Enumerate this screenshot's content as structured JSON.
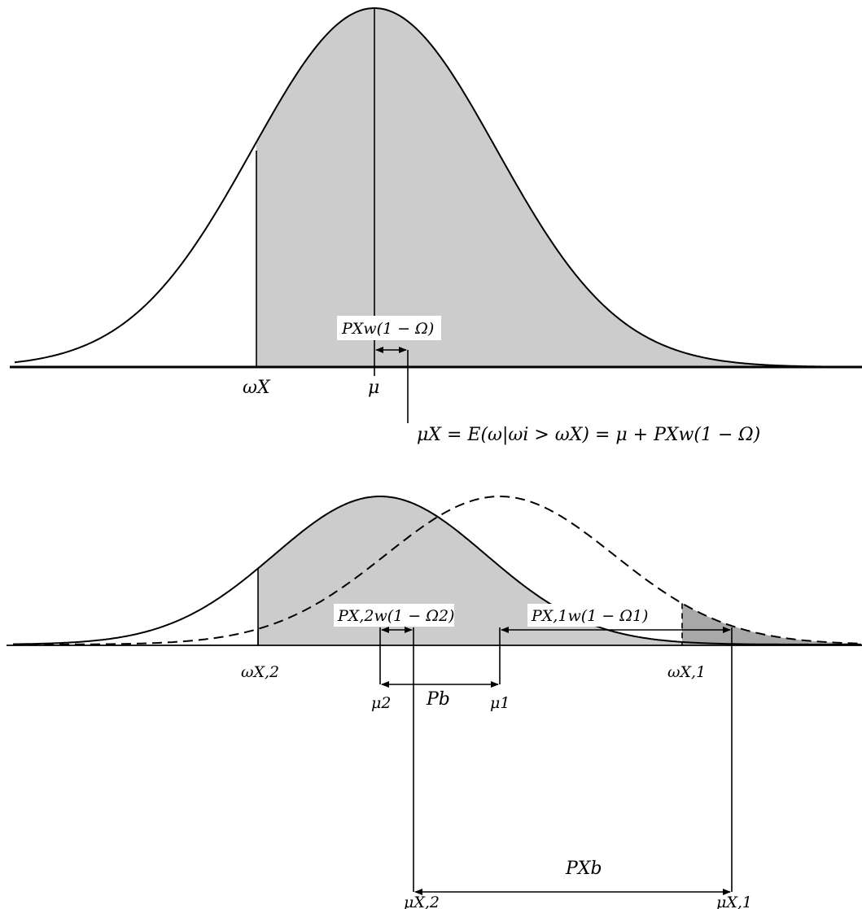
{
  "top_panel": {
    "labels": {
      "omega_X": "ωX",
      "mu": "μ",
      "offset": "PXw(1 − Ω)",
      "equation": "μX = E(ω|ωi > ωX) = μ + PXw(1 − Ω)"
    }
  },
  "bottom_panel": {
    "labels": {
      "omega_X2": "ωX,2",
      "omega_X1": "ωX,1",
      "mu_2": "μ2",
      "mu_1": "μ1",
      "mu_X2": "μX,2",
      "mu_X1": "μX,1",
      "offset_2": "PX,2w(1 − Ω2)",
      "offset_1": "PX,1w(1 − Ω1)",
      "P_b": "Pb",
      "P_X_b": "PXb"
    }
  },
  "colors": {
    "shade_light": "#cccccc",
    "shade_dark": "#a8a8a8",
    "line": "#000000"
  }
}
